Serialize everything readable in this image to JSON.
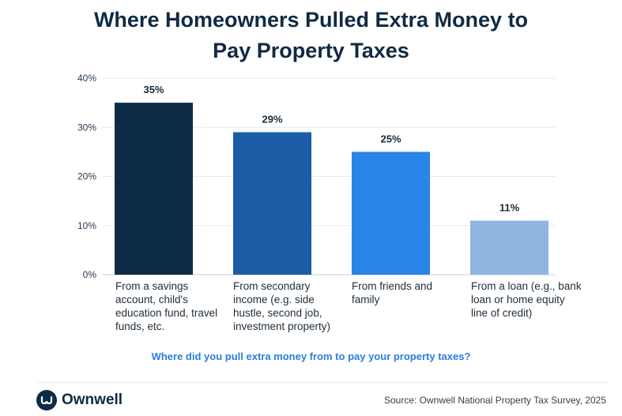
{
  "title_line1": "Where Homeowners Pulled Extra Money to",
  "title_line2": "Pay Property Taxes",
  "question": "Where did you pull extra money from to pay your property taxes?",
  "logo_text": "Ownwell",
  "source": "Source: Ownwell National Property Tax Survey, 2025",
  "chart_data": {
    "type": "bar",
    "categories": [
      "From a savings account, child's education fund, travel funds, etc.",
      "From secondary income (e.g. side hustle, second job, investment property)",
      "From friends and family",
      "From a loan (e.g., bank loan or home equity line of credit)"
    ],
    "values": [
      35,
      29,
      25,
      11
    ],
    "data_labels": [
      "35%",
      "29%",
      "25%",
      "11%"
    ],
    "yticks": [
      "0%",
      "10%",
      "20%",
      "30%",
      "40%"
    ],
    "ylim": [
      0,
      40
    ],
    "colors": [
      "#0d2b44",
      "#1a5da6",
      "#2a85e6",
      "#8fb4e0"
    ],
    "grid": true
  }
}
